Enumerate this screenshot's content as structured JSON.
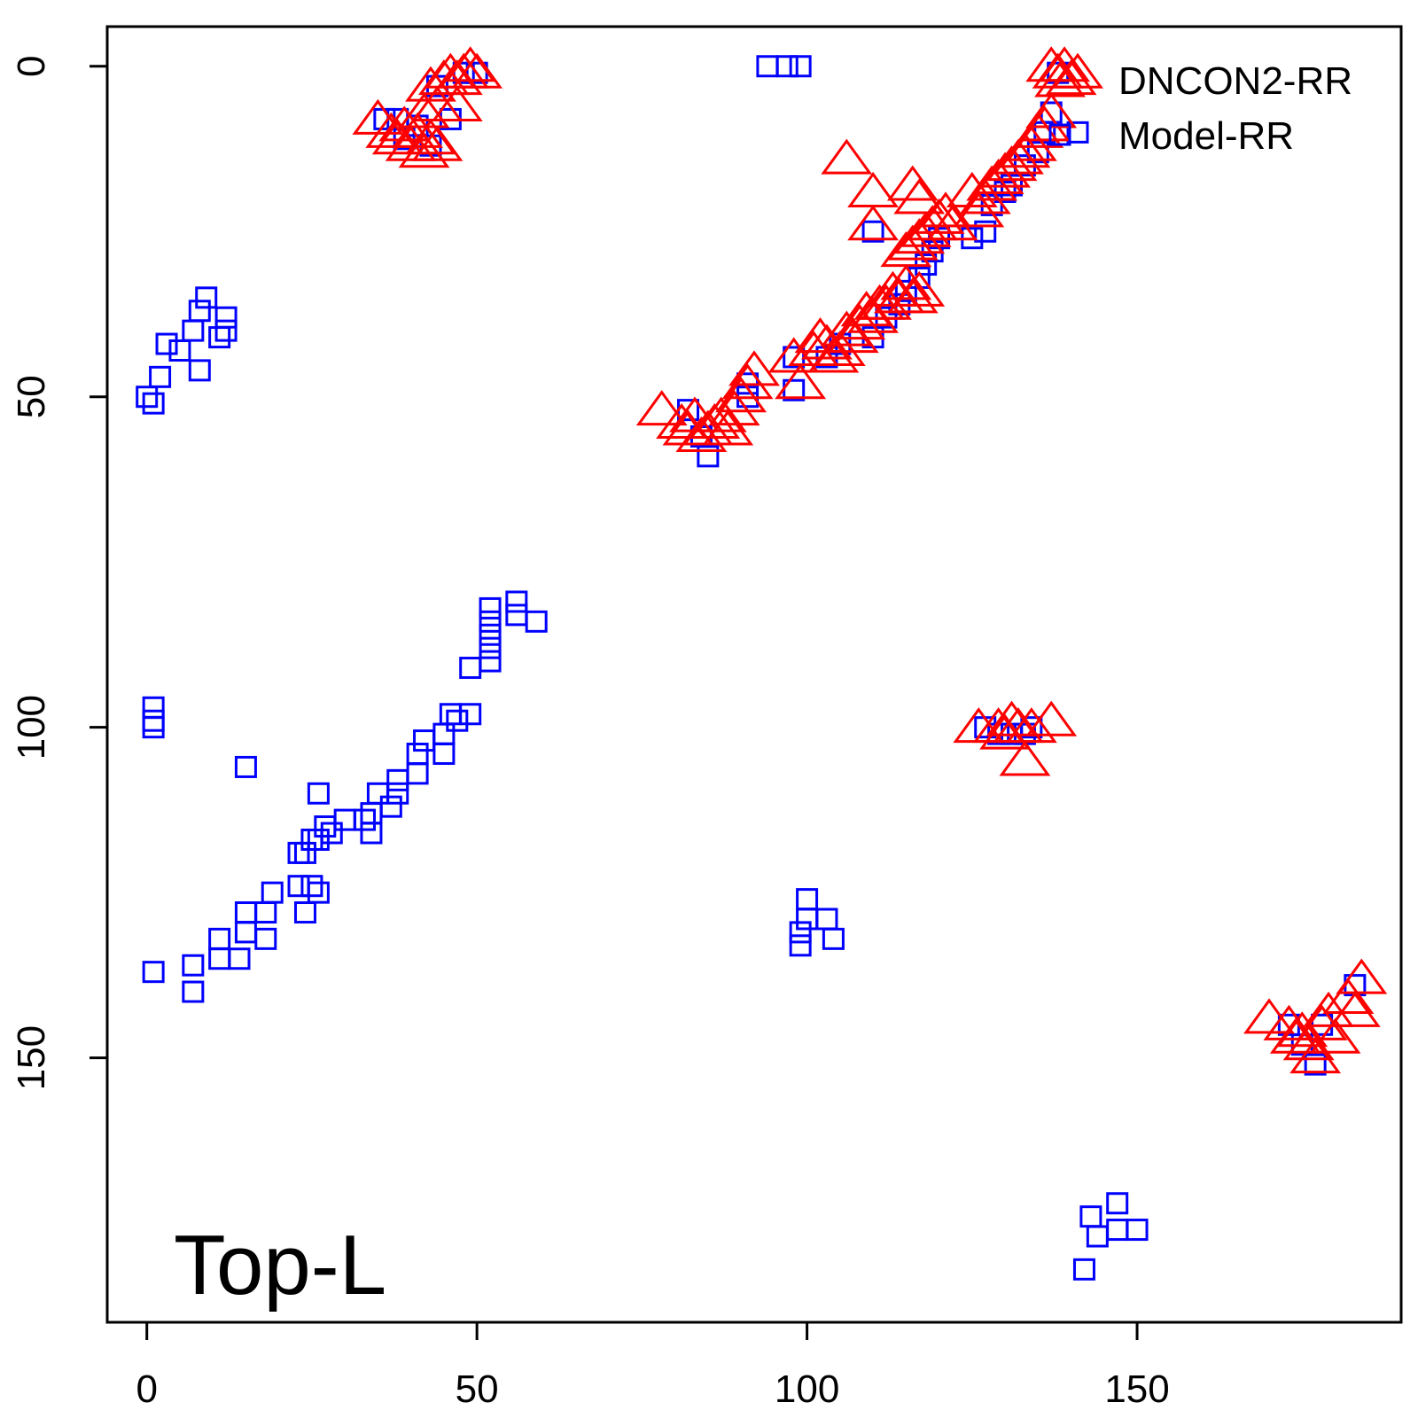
{
  "chart_data": {
    "type": "scatter",
    "annotation": "Top-L",
    "xlim": [
      -6,
      190
    ],
    "ylim": [
      -6,
      190
    ],
    "y_reversed": true,
    "grid": false,
    "legend_position": "top-right",
    "x_ticks": [
      0,
      50,
      100,
      150
    ],
    "y_ticks": [
      0,
      50,
      100,
      150
    ],
    "xlabel": "",
    "ylabel": "",
    "series": [
      {
        "name": "DNCON2-RR",
        "marker": "triangle",
        "color": "#ff0000",
        "points": [
          [
            35,
            8
          ],
          [
            37,
            10
          ],
          [
            38,
            11
          ],
          [
            39,
            9
          ],
          [
            40,
            12
          ],
          [
            41,
            10
          ],
          [
            42,
            13
          ],
          [
            43,
            11
          ],
          [
            44,
            12
          ],
          [
            42,
            7
          ],
          [
            43,
            3
          ],
          [
            45,
            2
          ],
          [
            46,
            1
          ],
          [
            47,
            2
          ],
          [
            48,
            1
          ],
          [
            49,
            0
          ],
          [
            50,
            1
          ],
          [
            47,
            6
          ],
          [
            44,
            6
          ],
          [
            78,
            52
          ],
          [
            81,
            54
          ],
          [
            82,
            55
          ],
          [
            83,
            53
          ],
          [
            84,
            56
          ],
          [
            85,
            55
          ],
          [
            86,
            54
          ],
          [
            87,
            53
          ],
          [
            88,
            55
          ],
          [
            89,
            52
          ],
          [
            90,
            50
          ],
          [
            91,
            48
          ],
          [
            92,
            46
          ],
          [
            98,
            44
          ],
          [
            99,
            48
          ],
          [
            101,
            43
          ],
          [
            102,
            41
          ],
          [
            103,
            42
          ],
          [
            104,
            44
          ],
          [
            105,
            43
          ],
          [
            106,
            40
          ],
          [
            107,
            41
          ],
          [
            108,
            39
          ],
          [
            109,
            37
          ],
          [
            110,
            38
          ],
          [
            111,
            36
          ],
          [
            112,
            36
          ],
          [
            113,
            34
          ],
          [
            114,
            35
          ],
          [
            115,
            33
          ],
          [
            116,
            35
          ],
          [
            117,
            34
          ],
          [
            115,
            28
          ],
          [
            116,
            27
          ],
          [
            117,
            26
          ],
          [
            118,
            25
          ],
          [
            119,
            24
          ],
          [
            120,
            23
          ],
          [
            121,
            22
          ],
          [
            122,
            24
          ],
          [
            116,
            18
          ],
          [
            117,
            20
          ],
          [
            110,
            19
          ],
          [
            110,
            24
          ],
          [
            106,
            14
          ],
          [
            125,
            19
          ],
          [
            126,
            22
          ],
          [
            127,
            20
          ],
          [
            128,
            18
          ],
          [
            129,
            17
          ],
          [
            130,
            16
          ],
          [
            131,
            15
          ],
          [
            132,
            14
          ],
          [
            133,
            13
          ],
          [
            134,
            12
          ],
          [
            135,
            10
          ],
          [
            136,
            9
          ],
          [
            137,
            7
          ],
          [
            138,
            1
          ],
          [
            139,
            0
          ],
          [
            140,
            2
          ],
          [
            141,
            1
          ],
          [
            137,
            0
          ],
          [
            126,
            100
          ],
          [
            129,
            100
          ],
          [
            130,
            101
          ],
          [
            131,
            99
          ],
          [
            132,
            100
          ],
          [
            133,
            105
          ],
          [
            134,
            100
          ],
          [
            137,
            99
          ],
          [
            170,
            144
          ],
          [
            173,
            145
          ],
          [
            174,
            147
          ],
          [
            175,
            146
          ],
          [
            176,
            148
          ],
          [
            177,
            150
          ],
          [
            178,
            145
          ],
          [
            179,
            143
          ],
          [
            180,
            147
          ],
          [
            182,
            141
          ],
          [
            183,
            143
          ],
          [
            184,
            138
          ]
        ]
      },
      {
        "name": "Model-RR",
        "marker": "square",
        "color": "#0000ff",
        "points": [
          [
            0,
            50
          ],
          [
            1,
            51
          ],
          [
            2,
            47
          ],
          [
            3,
            42
          ],
          [
            5,
            43
          ],
          [
            7,
            40
          ],
          [
            8,
            37
          ],
          [
            8,
            46
          ],
          [
            9,
            35
          ],
          [
            11,
            41
          ],
          [
            12,
            38
          ],
          [
            12,
            40
          ],
          [
            1,
            97
          ],
          [
            1,
            99
          ],
          [
            1,
            100
          ],
          [
            15,
            106
          ],
          [
            36,
            8
          ],
          [
            38,
            8
          ],
          [
            39,
            11
          ],
          [
            41,
            9
          ],
          [
            43,
            12
          ],
          [
            44,
            3
          ],
          [
            46,
            8
          ],
          [
            48,
            1
          ],
          [
            50,
            1
          ],
          [
            94,
            0
          ],
          [
            97,
            0
          ],
          [
            99,
            0
          ],
          [
            1,
            137
          ],
          [
            7,
            136
          ],
          [
            7,
            140
          ],
          [
            11,
            135
          ],
          [
            11,
            132
          ],
          [
            14,
            135
          ],
          [
            15,
            131
          ],
          [
            15,
            128
          ],
          [
            18,
            132
          ],
          [
            18,
            128
          ],
          [
            19,
            125
          ],
          [
            23,
            124
          ],
          [
            24,
            128
          ],
          [
            25,
            124
          ],
          [
            26,
            125
          ],
          [
            26,
            110
          ],
          [
            23,
            119
          ],
          [
            24,
            119
          ],
          [
            25,
            117
          ],
          [
            26,
            117
          ],
          [
            27,
            115
          ],
          [
            28,
            116
          ],
          [
            30,
            114
          ],
          [
            33,
            114
          ],
          [
            34,
            113
          ],
          [
            34,
            116
          ],
          [
            35,
            110
          ],
          [
            37,
            112
          ],
          [
            38,
            110
          ],
          [
            38,
            108
          ],
          [
            41,
            107
          ],
          [
            41,
            104
          ],
          [
            42,
            102
          ],
          [
            45,
            104
          ],
          [
            45,
            101
          ],
          [
            46,
            98
          ],
          [
            47,
            99
          ],
          [
            49,
            91
          ],
          [
            49,
            98
          ],
          [
            52,
            82
          ],
          [
            52,
            84
          ],
          [
            52,
            86
          ],
          [
            52,
            88
          ],
          [
            52,
            90
          ],
          [
            56,
            81
          ],
          [
            56,
            83
          ],
          [
            59,
            84
          ],
          [
            82,
            52
          ],
          [
            84,
            56
          ],
          [
            85,
            59
          ],
          [
            91,
            48
          ],
          [
            91,
            50
          ],
          [
            98,
            44
          ],
          [
            98,
            49
          ],
          [
            103,
            44
          ],
          [
            105,
            42
          ],
          [
            110,
            25
          ],
          [
            110,
            41
          ],
          [
            112,
            38
          ],
          [
            114,
            36
          ],
          [
            115,
            34
          ],
          [
            117,
            32
          ],
          [
            118,
            30
          ],
          [
            119,
            28
          ],
          [
            120,
            26
          ],
          [
            125,
            26
          ],
          [
            127,
            25
          ],
          [
            128,
            21
          ],
          [
            130,
            19
          ],
          [
            131,
            18
          ],
          [
            133,
            15
          ],
          [
            135,
            13
          ],
          [
            136,
            10
          ],
          [
            137,
            7
          ],
          [
            138,
            1
          ],
          [
            141,
            10
          ],
          [
            127,
            100
          ],
          [
            129,
            101
          ],
          [
            131,
            101
          ],
          [
            133,
            101
          ],
          [
            134,
            100
          ],
          [
            100,
            126
          ],
          [
            100,
            129
          ],
          [
            99,
            131
          ],
          [
            99,
            133
          ],
          [
            103,
            129
          ],
          [
            104,
            132
          ],
          [
            173,
            145
          ],
          [
            175,
            148
          ],
          [
            178,
            145
          ],
          [
            177,
            151
          ],
          [
            183,
            139
          ],
          [
            142,
            182
          ],
          [
            143,
            174
          ],
          [
            144,
            177
          ],
          [
            147,
            172
          ],
          [
            147,
            176
          ],
          [
            150,
            176
          ]
        ]
      }
    ]
  }
}
